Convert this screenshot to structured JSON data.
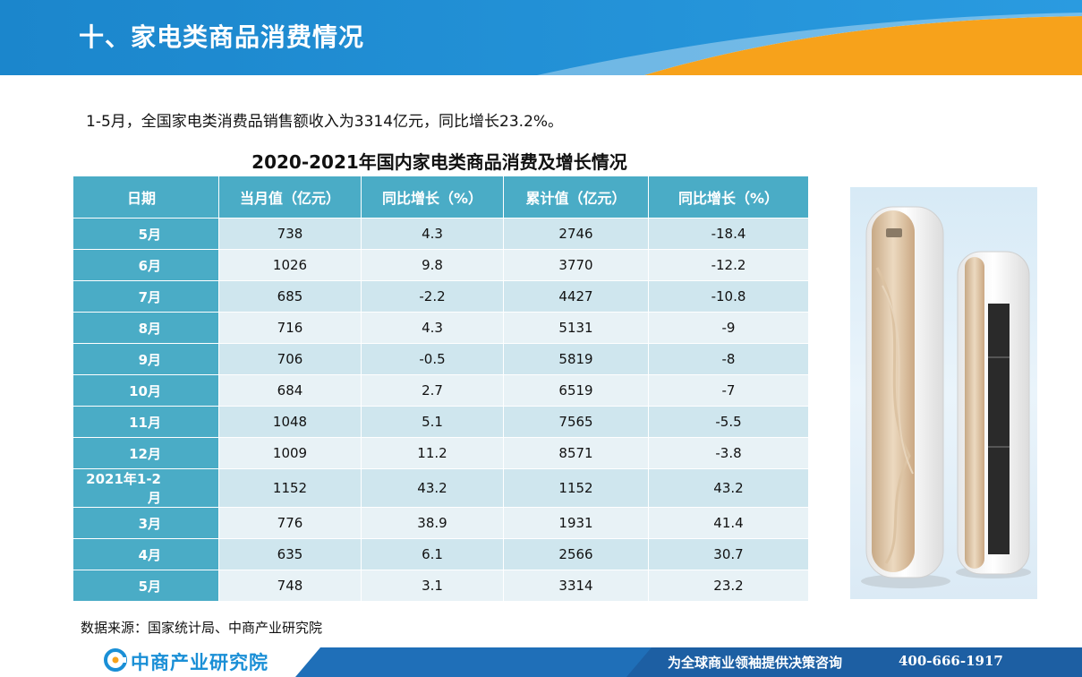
{
  "header": {
    "title": "十、家电类商品消费情况"
  },
  "summary": "1-5月，全国家电类消费品销售额收入为3314亿元，同比增长23.2%。",
  "table_title": "2020-2021年国内家电类商品消费及增长情况",
  "table": {
    "headers": [
      "日期",
      "当月值（亿元）",
      "同比增长（%）",
      "累计值（亿元）",
      "同比增长（%）"
    ],
    "rows": [
      [
        "5月",
        "738",
        "4.3",
        "2746",
        "-18.4"
      ],
      [
        "6月",
        "1026",
        "9.8",
        "3770",
        "-12.2"
      ],
      [
        "7月",
        "685",
        "-2.2",
        "4427",
        "-10.8"
      ],
      [
        "8月",
        "716",
        "4.3",
        "5131",
        "-9"
      ],
      [
        "9月",
        "706",
        "-0.5",
        "5819",
        "-8"
      ],
      [
        "10月",
        "684",
        "2.7",
        "6519",
        "-7"
      ],
      [
        "11月",
        "1048",
        "5.1",
        "7565",
        "-5.5"
      ],
      [
        "12月",
        "1009",
        "11.2",
        "8571",
        "-3.8"
      ],
      [
        "2021年1-2月",
        "1152",
        "43.2",
        "1152",
        "43.2"
      ],
      [
        "3月",
        "776",
        "38.9",
        "1931",
        "41.4"
      ],
      [
        "4月",
        "635",
        "6.1",
        "2566",
        "30.7"
      ],
      [
        "5月",
        "748",
        "3.1",
        "3314",
        "23.2"
      ]
    ]
  },
  "source": "数据来源：国家统计局、中商产业研究院",
  "footer": {
    "logo_text": "中商产业研究院",
    "slogan": "为全球商业领袖提供决策咨询",
    "phone": "400-666-1917"
  },
  "colors": {
    "header_blue": "#1f8bd0",
    "accent_orange": "#f7a21b",
    "table_blue": "#4aacc6",
    "row_light": "#cfe6ee",
    "row_lighter": "#e8f2f6"
  },
  "icons": {
    "logo": "company-logo-icon",
    "product": "air-conditioner-image"
  }
}
